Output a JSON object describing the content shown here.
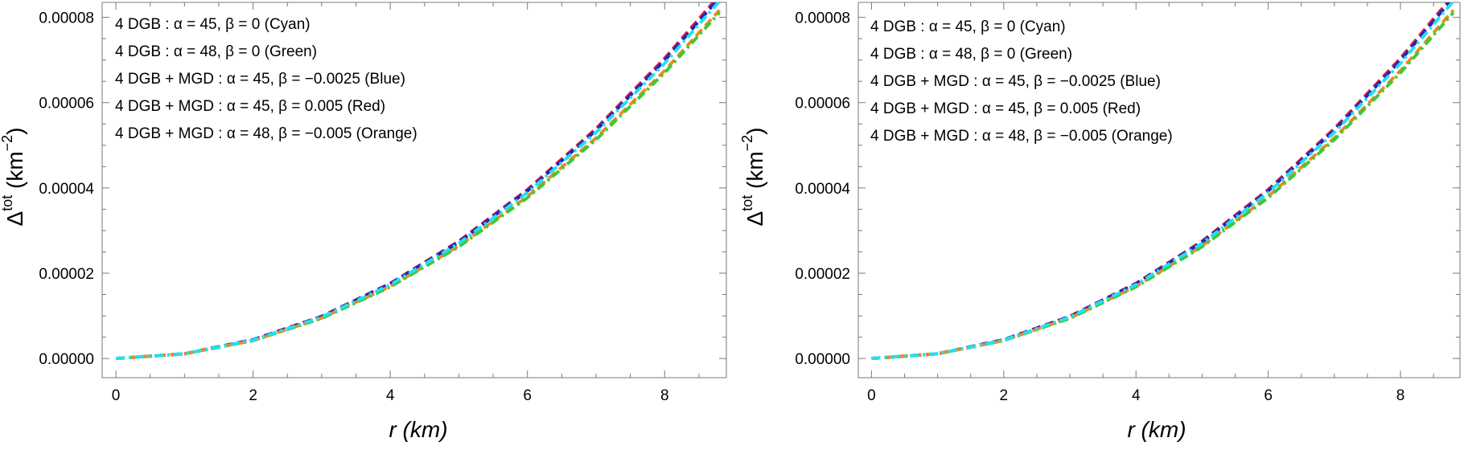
{
  "chart_data": [
    {
      "type": "line",
      "xlabel": "r (km)",
      "xlabel_parts": {
        "var": "r",
        "unit": "(km)"
      },
      "ylabel_parts": {
        "sym": "Δ",
        "sup": "tot",
        "unit_pre": "(km",
        "unit_sup": "−2",
        "unit_post": ")"
      },
      "xlim": [
        -0.2,
        8.9
      ],
      "ylim": [
        -4.5e-06,
        8.35e-05
      ],
      "x_ticks": [
        0,
        2,
        4,
        6,
        8
      ],
      "x_tick_labels": [
        "0",
        "2",
        "4",
        "6",
        "8"
      ],
      "y_ticks": [
        0,
        2e-05,
        4e-05,
        6e-05,
        8e-05
      ],
      "y_tick_labels": [
        "0.00000",
        "0.00002",
        "0.00004",
        "0.00006",
        "0.00008"
      ],
      "legend_position": "top-left",
      "legend": [
        "4 DGB :  α = 45,  β = 0 (Cyan)",
        "4 DGB : α = 48,  β = 0 (Green)",
        "4 DGB + MGD : α = 45,  β = −0.0025 (Blue)",
        "4 DGB + MGD : α = 45,  β = 0.005 (Red)",
        "4 DGB + MGD : α = 48,  β = −0.005 (Orange)"
      ],
      "series": [
        {
          "name": "Red",
          "color": "#e8242b",
          "dash": "dashed",
          "x": [
            0,
            1,
            2,
            3,
            4,
            5,
            6,
            7,
            8,
            8.8
          ],
          "values": [
            0,
            1.1e-06,
            4.4e-06,
            9.9e-06,
            1.76e-05,
            2.75e-05,
            3.96e-05,
            5.39e-05,
            7.04e-05,
            8.52e-05
          ]
        },
        {
          "name": "Blue",
          "color": "#1c24c8",
          "dash": "dashed",
          "x": [
            0,
            1,
            2,
            3,
            4,
            5,
            6,
            7,
            8,
            8.8
          ],
          "values": [
            0,
            1.1e-06,
            4.4e-06,
            9.8e-06,
            1.75e-05,
            2.73e-05,
            3.93e-05,
            5.35e-05,
            6.99e-05,
            8.46e-05
          ]
        },
        {
          "name": "Orange",
          "color": "#f08a1c",
          "dash": "dashed",
          "x": [
            0,
            1,
            2,
            3,
            4,
            5,
            6,
            7,
            8,
            8.8
          ],
          "values": [
            0,
            1.1e-06,
            4.2e-06,
            9.5e-06,
            1.69e-05,
            2.64e-05,
            3.8e-05,
            5.17e-05,
            6.75e-05,
            8.17e-05
          ]
        },
        {
          "name": "Green",
          "color": "#3cc83c",
          "dash": "dashdot",
          "x": [
            0,
            1,
            2,
            3,
            4,
            5,
            6,
            7,
            8,
            8.8
          ],
          "values": [
            0,
            1.1e-06,
            4.2e-06,
            9.4e-06,
            1.68e-05,
            2.62e-05,
            3.77e-05,
            5.13e-05,
            6.7e-05,
            8.11e-05
          ]
        },
        {
          "name": "Cyan",
          "color": "#22e0f0",
          "dash": "dashdot",
          "x": [
            0,
            1,
            2,
            3,
            4,
            5,
            6,
            7,
            8,
            8.8
          ],
          "values": [
            0,
            1.1e-06,
            4.3e-06,
            9.7e-06,
            1.73e-05,
            2.7e-05,
            3.89e-05,
            5.3e-05,
            6.92e-05,
            8.38e-05
          ]
        }
      ]
    },
    {
      "type": "line",
      "xlabel": "r (km)",
      "xlabel_parts": {
        "var": "r",
        "unit": "(km)"
      },
      "ylabel_parts": {
        "sym": "Δ",
        "sup": "tot",
        "unit_pre": "(km",
        "unit_sup": "−2",
        "unit_post": ")"
      },
      "xlim": [
        -0.2,
        8.9
      ],
      "ylim": [
        -4.5e-06,
        8.35e-05
      ],
      "x_ticks": [
        0,
        2,
        4,
        6,
        8
      ],
      "x_tick_labels": [
        "0",
        "2",
        "4",
        "6",
        "8"
      ],
      "y_ticks": [
        0,
        2e-05,
        4e-05,
        6e-05,
        8e-05
      ],
      "y_tick_labels": [
        "0.00000",
        "0.00002",
        "0.00004",
        "0.00006",
        "0.00008"
      ],
      "legend_position": "top-left",
      "legend": [
        "4 DGB :  α = 45,  β = 0 (Cyan)",
        "4 DGB : α = 48,  β = 0 (Green)",
        "4 DGB + MGD : α = 45,  β = −0.0025 (Blue)",
        "4 DGB + MGD : α = 45,  β = 0.005 (Red)",
        "4 DGB + MGD : α = 48,  β = −0.005 (Orange)"
      ],
      "series": [
        {
          "name": "Red",
          "color": "#e8242b",
          "dash": "dashed",
          "x": [
            0,
            1,
            2,
            3,
            4,
            5,
            6,
            7,
            8,
            8.8
          ],
          "values": [
            0,
            1.1e-06,
            4.4e-06,
            9.9e-06,
            1.76e-05,
            2.75e-05,
            3.96e-05,
            5.39e-05,
            7.04e-05,
            8.52e-05
          ]
        },
        {
          "name": "Blue",
          "color": "#1c24c8",
          "dash": "dashed",
          "x": [
            0,
            1,
            2,
            3,
            4,
            5,
            6,
            7,
            8,
            8.8
          ],
          "values": [
            0,
            1.1e-06,
            4.4e-06,
            9.8e-06,
            1.75e-05,
            2.73e-05,
            3.93e-05,
            5.35e-05,
            6.99e-05,
            8.46e-05
          ]
        },
        {
          "name": "Orange",
          "color": "#f08a1c",
          "dash": "dashed",
          "x": [
            0,
            1,
            2,
            3,
            4,
            5,
            6,
            7,
            8,
            8.8
          ],
          "values": [
            0,
            1.1e-06,
            4.2e-06,
            9.5e-06,
            1.69e-05,
            2.64e-05,
            3.8e-05,
            5.17e-05,
            6.75e-05,
            8.17e-05
          ]
        },
        {
          "name": "Green",
          "color": "#3cc83c",
          "dash": "dashdot",
          "x": [
            0,
            1,
            2,
            3,
            4,
            5,
            6,
            7,
            8,
            8.8
          ],
          "values": [
            0,
            1.1e-06,
            4.2e-06,
            9.4e-06,
            1.68e-05,
            2.62e-05,
            3.77e-05,
            5.13e-05,
            6.7e-05,
            8.11e-05
          ]
        },
        {
          "name": "Cyan",
          "color": "#22e0f0",
          "dash": "dashdot",
          "x": [
            0,
            1,
            2,
            3,
            4,
            5,
            6,
            7,
            8,
            8.8
          ],
          "values": [
            0,
            1.1e-06,
            4.3e-06,
            9.7e-06,
            1.73e-05,
            2.7e-05,
            3.89e-05,
            5.3e-05,
            6.92e-05,
            8.38e-05
          ]
        }
      ]
    }
  ]
}
